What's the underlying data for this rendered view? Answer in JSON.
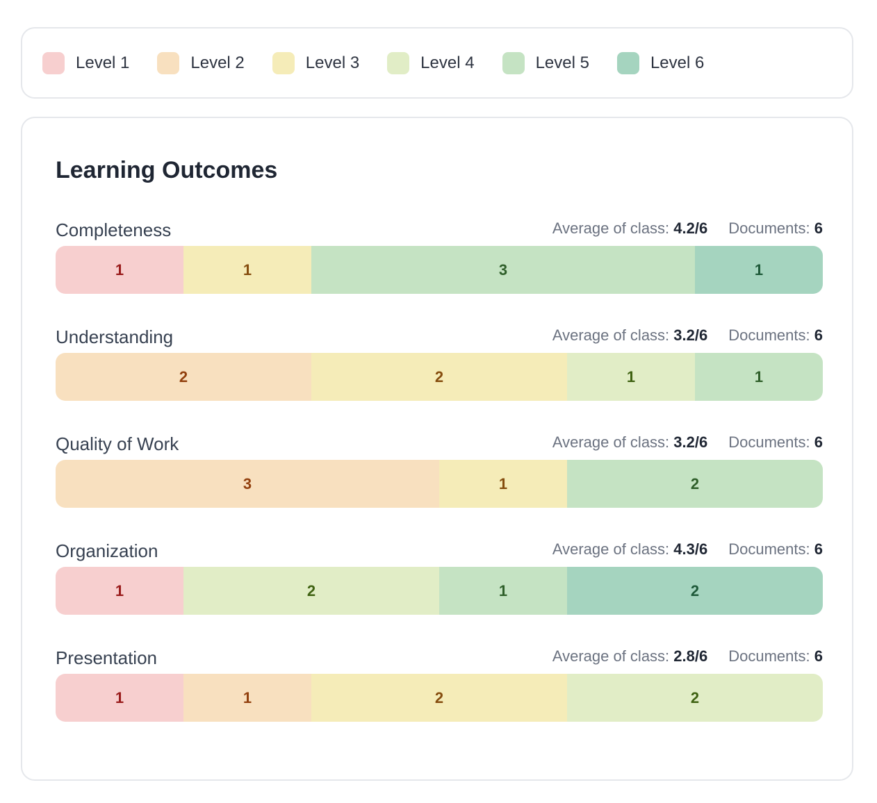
{
  "chart_data": {
    "type": "bar",
    "orientation": "horizontal",
    "stacked": true,
    "title": "Learning Outcomes",
    "categories": [
      "Completeness",
      "Understanding",
      "Quality of Work",
      "Organization",
      "Presentation"
    ],
    "average_label": "Average of class:",
    "averages": [
      "4.2/6",
      "3.2/6",
      "3.2/6",
      "4.3/6",
      "2.8/6"
    ],
    "documents_label": "Documents:",
    "documents": [
      6,
      6,
      6,
      6,
      6
    ],
    "xlim": [
      0,
      6
    ],
    "series": [
      {
        "name": "Level 1",
        "color": "#f7cfcf",
        "text_color": "#991b1b",
        "values": [
          1,
          0,
          0,
          1,
          1
        ]
      },
      {
        "name": "Level 2",
        "color": "#f8e0bf",
        "text_color": "#92400e",
        "values": [
          0,
          2,
          3,
          0,
          1
        ]
      },
      {
        "name": "Level 3",
        "color": "#f5ecb8",
        "text_color": "#854d0e",
        "values": [
          1,
          2,
          1,
          0,
          2
        ]
      },
      {
        "name": "Level 4",
        "color": "#e1edc6",
        "text_color": "#3f6212",
        "values": [
          0,
          1,
          0,
          2,
          2
        ]
      },
      {
        "name": "Level 5",
        "color": "#c5e3c3",
        "text_color": "#2f5f2a",
        "values": [
          3,
          1,
          2,
          1,
          0
        ]
      },
      {
        "name": "Level 6",
        "color": "#a5d4bf",
        "text_color": "#1f5a3a",
        "values": [
          1,
          0,
          0,
          2,
          0
        ]
      }
    ]
  }
}
